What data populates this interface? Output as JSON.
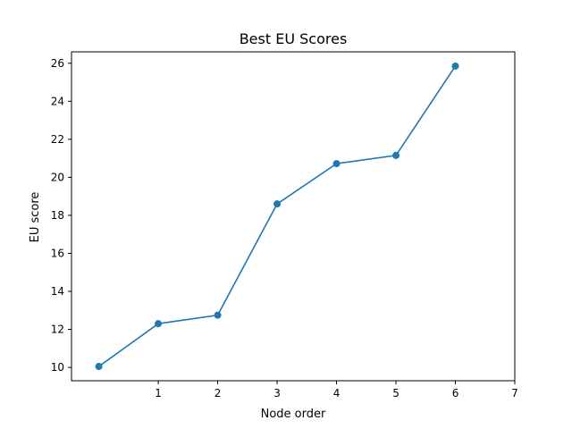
{
  "chart_data": {
    "type": "line",
    "title": "Best EU Scores",
    "xlabel": "Node order",
    "ylabel": "EU score",
    "xlim": [
      -0.46,
      7
    ],
    "ylim": [
      9.3,
      26.6
    ],
    "x_ticks": [
      1,
      2,
      3,
      4,
      5,
      6,
      7
    ],
    "y_ticks": [
      10,
      12,
      14,
      16,
      18,
      20,
      22,
      24,
      26
    ],
    "grid": false,
    "series": [
      {
        "color": "#1f77b4",
        "marker": "circle",
        "x": [
          0,
          1,
          2,
          3,
          4,
          5,
          6
        ],
        "y": [
          10.05,
          12.3,
          12.75,
          18.6,
          20.72,
          21.15,
          25.85
        ]
      }
    ]
  }
}
